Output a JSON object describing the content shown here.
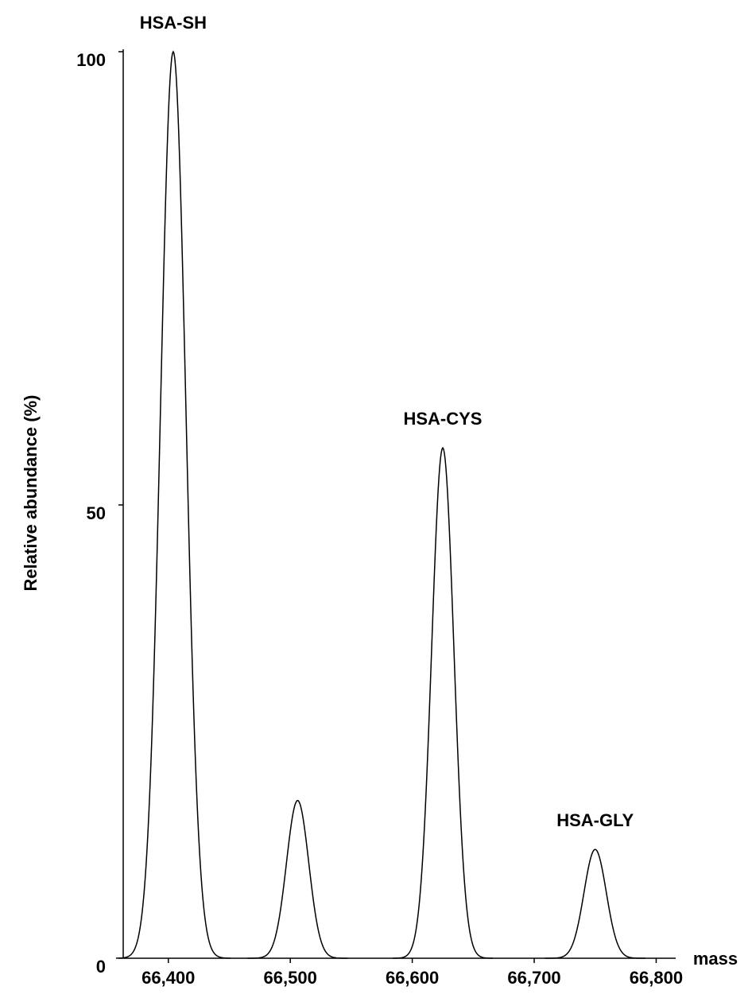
{
  "chart_data": {
    "type": "spectrum",
    "x_label": "mass",
    "y_label": "Relative abundance (%)",
    "x": [
      66404,
      66506,
      66625,
      66750
    ],
    "values": [
      100,
      17.4,
      56.3,
      12
    ],
    "peak_labels": [
      "HSA-SH",
      null,
      "HSA-CYS",
      "HSA-GLY"
    ],
    "color": "#000000",
    "xlim": [
      66363,
      66816
    ],
    "ylim": [
      0,
      100
    ],
    "xticks": [
      {
        "value": 66400,
        "label": "66,400"
      },
      {
        "value": 66500,
        "label": "66,500"
      },
      {
        "value": 66600,
        "label": "66,600"
      },
      {
        "value": 66700,
        "label": "66,700"
      },
      {
        "value": 66800,
        "label": "66,800"
      }
    ],
    "yticks": [
      0,
      50,
      100
    ]
  }
}
